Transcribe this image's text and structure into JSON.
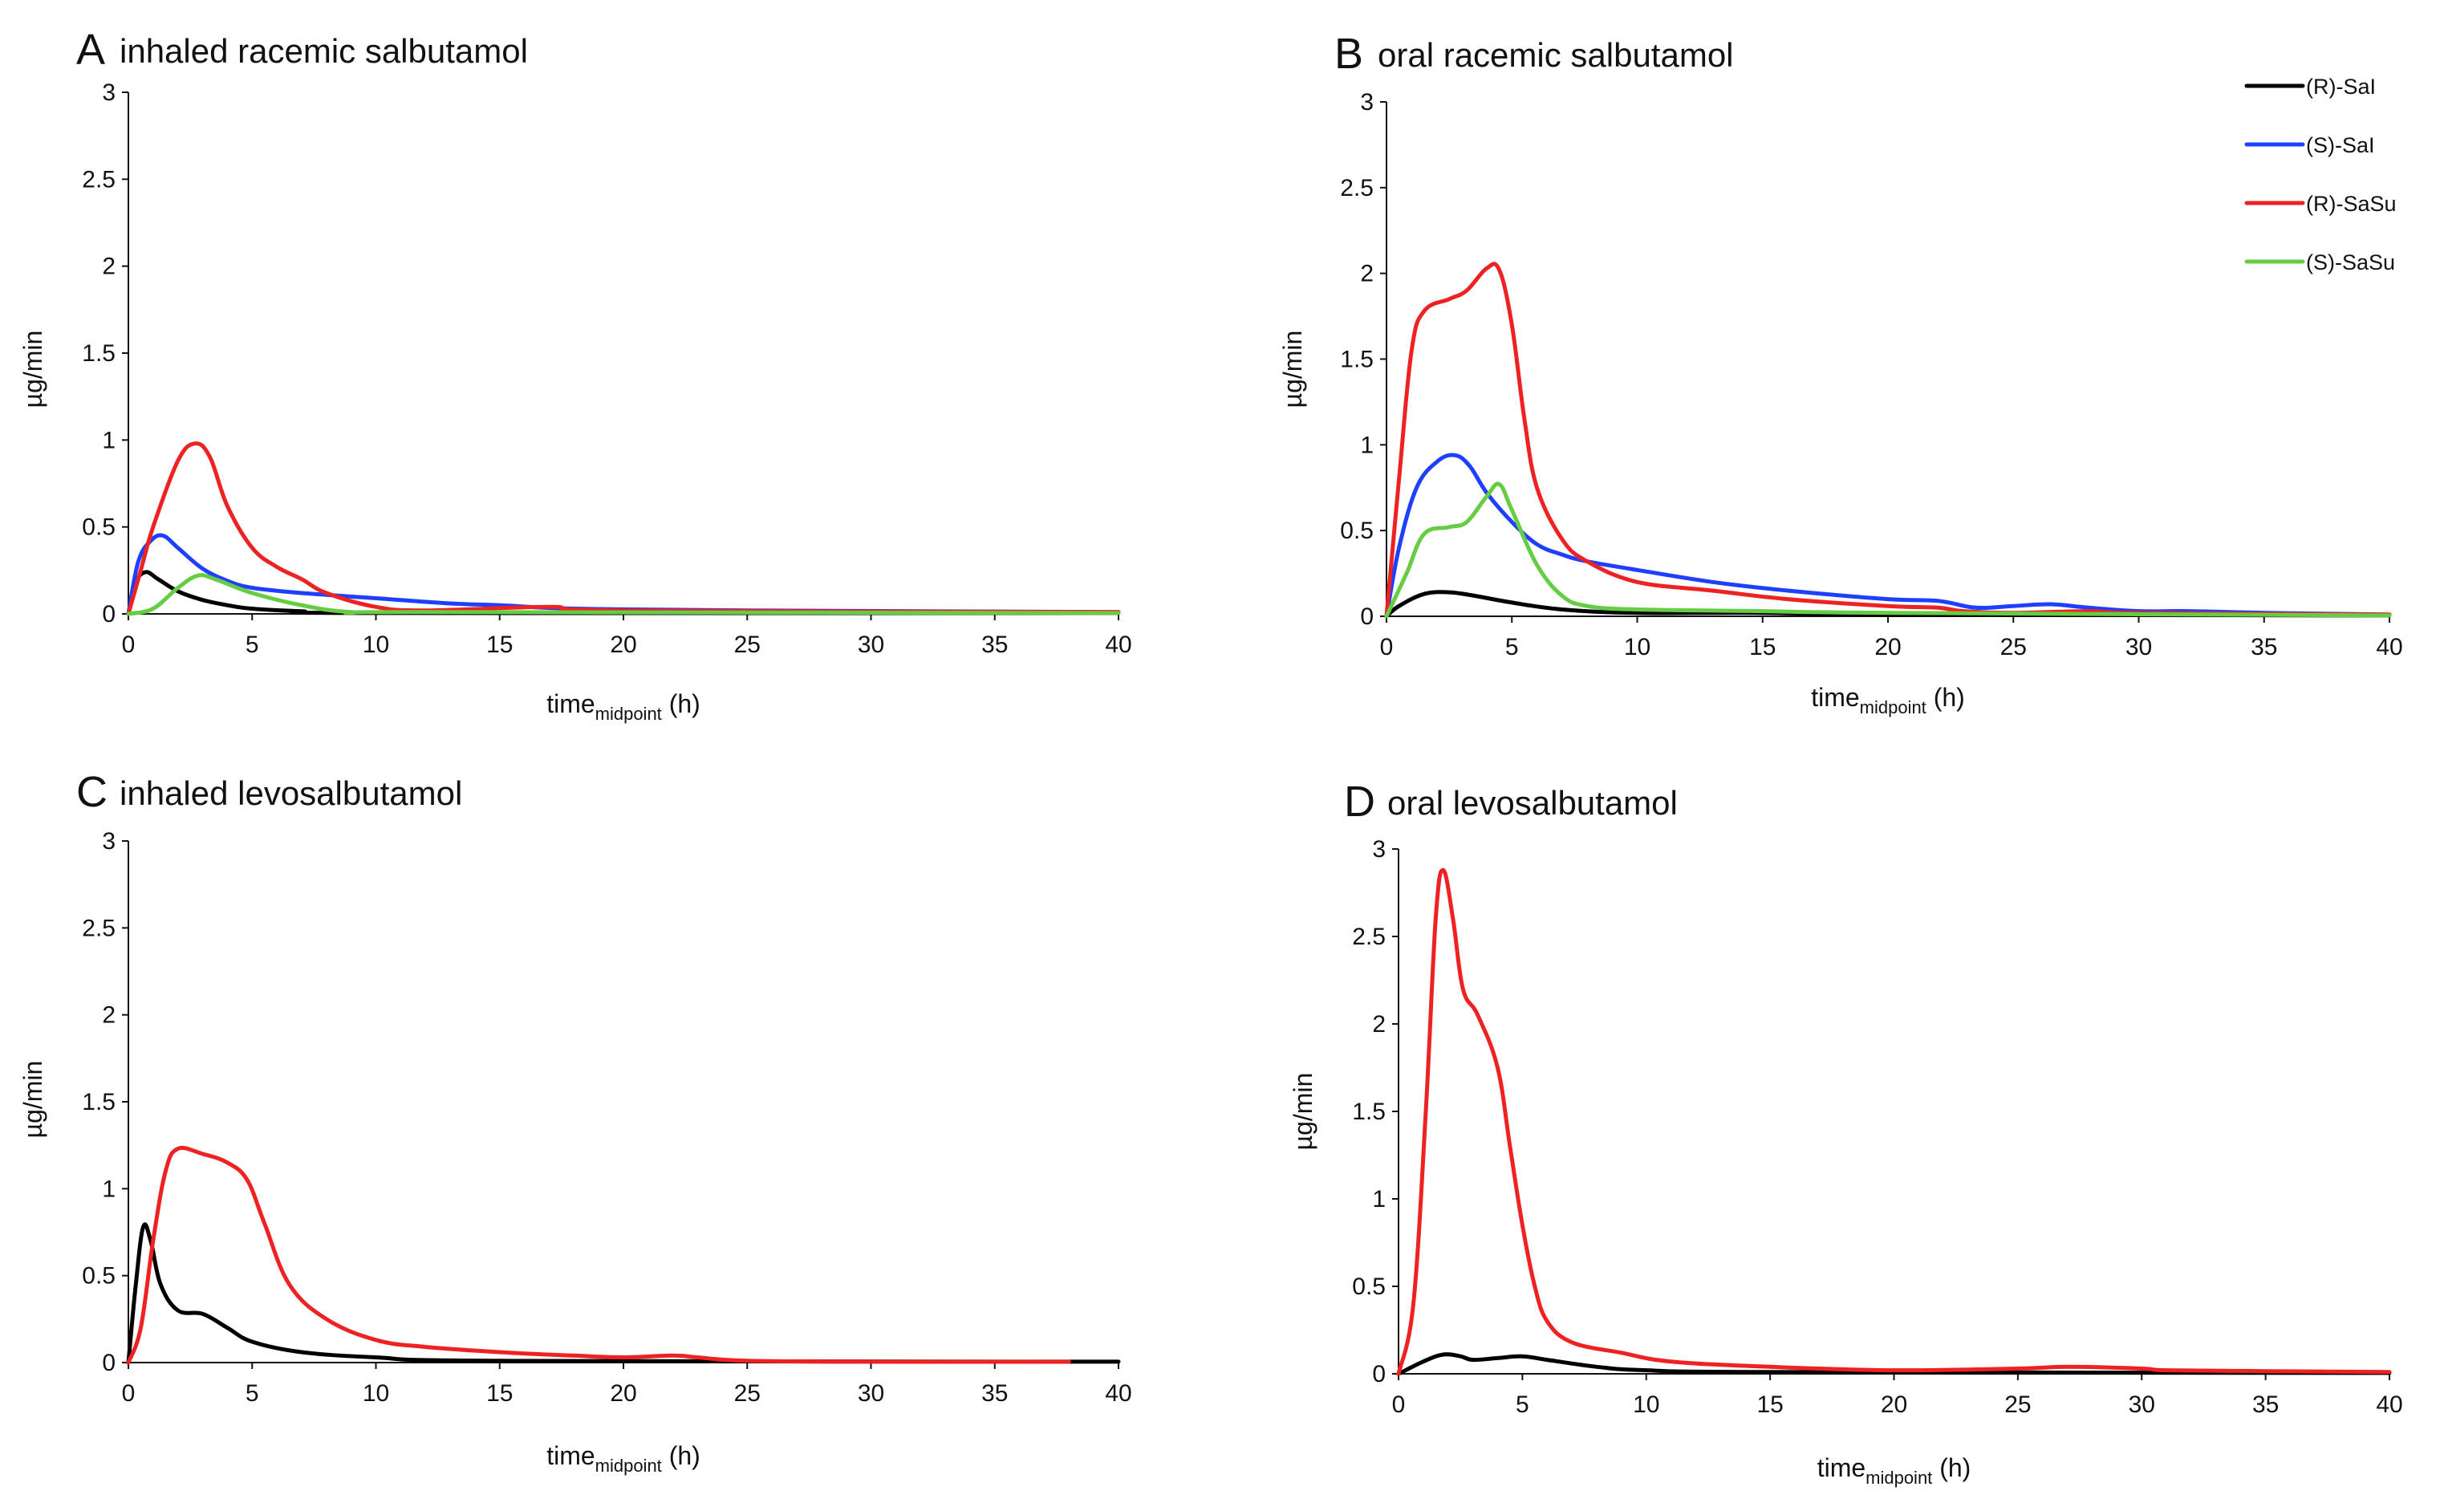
{
  "chart_data": [
    {
      "type": "line",
      "panel_letter": "A",
      "title": "inhaled racemic salbutamol",
      "xlabel": "time",
      "xlabel_sub": "midpoint",
      "xlabel_unit": " (h)",
      "ylabel": "µg/min",
      "xlim": [
        0,
        40
      ],
      "ylim": [
        0,
        3
      ],
      "x_ticks": [
        0,
        5,
        10,
        15,
        20,
        25,
        30,
        35,
        40
      ],
      "y_ticks": [
        0,
        0.5,
        1,
        1.5,
        2,
        2.5,
        3
      ],
      "legend": null,
      "series": [
        {
          "name": "(R)-SaI",
          "color": "#000000",
          "points": [
            [
              0,
              0
            ],
            [
              0.3,
              0.18
            ],
            [
              0.7,
              0.24
            ],
            [
              1.2,
              0.2
            ],
            [
              2,
              0.13
            ],
            [
              3,
              0.08
            ],
            [
              4,
              0.05
            ],
            [
              5,
              0.03
            ],
            [
              7,
              0.015
            ],
            [
              10,
              0.005
            ],
            [
              40,
              0.005
            ]
          ]
        },
        {
          "name": "(S)-SaI",
          "color": "#1f3fff",
          "points": [
            [
              0,
              0
            ],
            [
              0.4,
              0.3
            ],
            [
              0.9,
              0.42
            ],
            [
              1.4,
              0.45
            ],
            [
              2,
              0.38
            ],
            [
              3,
              0.26
            ],
            [
              4,
              0.19
            ],
            [
              5,
              0.15
            ],
            [
              7,
              0.12
            ],
            [
              10,
              0.09
            ],
            [
              13,
              0.06
            ],
            [
              15,
              0.05
            ],
            [
              18,
              0.03
            ],
            [
              25,
              0.02
            ],
            [
              40,
              0.01
            ]
          ]
        },
        {
          "name": "(R)-SaSu",
          "color": "#ee2222",
          "points": [
            [
              0,
              0
            ],
            [
              0.5,
              0.25
            ],
            [
              1,
              0.5
            ],
            [
              2,
              0.88
            ],
            [
              2.7,
              0.98
            ],
            [
              3.3,
              0.9
            ],
            [
              4,
              0.62
            ],
            [
              5,
              0.38
            ],
            [
              6,
              0.27
            ],
            [
              7,
              0.2
            ],
            [
              8,
              0.12
            ],
            [
              10,
              0.04
            ],
            [
              12,
              0.02
            ],
            [
              17,
              0.04
            ],
            [
              20,
              0.02
            ],
            [
              40,
              0.01
            ]
          ]
        },
        {
          "name": "(S)-SaSu",
          "color": "#66cc44",
          "points": [
            [
              0,
              0
            ],
            [
              1,
              0.03
            ],
            [
              2,
              0.15
            ],
            [
              2.8,
              0.22
            ],
            [
              3.5,
              0.2
            ],
            [
              5,
              0.12
            ],
            [
              7,
              0.05
            ],
            [
              9,
              0.01
            ],
            [
              12,
              0.01
            ],
            [
              40,
              0.005
            ]
          ]
        }
      ]
    },
    {
      "type": "line",
      "panel_letter": "B",
      "title": "oral racemic salbutamol",
      "xlabel": "time",
      "xlabel_sub": "midpoint",
      "xlabel_unit": " (h)",
      "ylabel": "µg/min",
      "xlim": [
        0,
        40
      ],
      "ylim": [
        0,
        3
      ],
      "x_ticks": [
        0,
        5,
        10,
        15,
        20,
        25,
        30,
        35,
        40
      ],
      "y_ticks": [
        0,
        0.5,
        1,
        1.5,
        2,
        2.5,
        3
      ],
      "legend": "top-right",
      "series": [
        {
          "name": "(R)-SaI",
          "color": "#000000",
          "points": [
            [
              0,
              0
            ],
            [
              0.5,
              0.06
            ],
            [
              1.5,
              0.13
            ],
            [
              2.5,
              0.14
            ],
            [
              3.5,
              0.12
            ],
            [
              5,
              0.08
            ],
            [
              7,
              0.04
            ],
            [
              10,
              0.02
            ],
            [
              15,
              0.02
            ],
            [
              20,
              0.01
            ],
            [
              40,
              0.005
            ]
          ]
        },
        {
          "name": "(S)-SaI",
          "color": "#1f3fff",
          "points": [
            [
              0,
              0
            ],
            [
              0.5,
              0.4
            ],
            [
              1.2,
              0.75
            ],
            [
              2,
              0.9
            ],
            [
              2.7,
              0.94
            ],
            [
              3.3,
              0.88
            ],
            [
              4,
              0.72
            ],
            [
              5,
              0.55
            ],
            [
              6,
              0.42
            ],
            [
              7,
              0.36
            ],
            [
              8,
              0.32
            ],
            [
              10,
              0.27
            ],
            [
              13,
              0.2
            ],
            [
              16,
              0.15
            ],
            [
              20,
              0.1
            ],
            [
              22,
              0.09
            ],
            [
              23.5,
              0.05
            ],
            [
              25,
              0.06
            ],
            [
              26.5,
              0.07
            ],
            [
              28,
              0.05
            ],
            [
              30,
              0.03
            ],
            [
              32,
              0.03
            ],
            [
              35,
              0.02
            ],
            [
              40,
              0.01
            ]
          ]
        },
        {
          "name": "(R)-SaSu",
          "color": "#ee2222",
          "points": [
            [
              0,
              0
            ],
            [
              0.5,
              0.8
            ],
            [
              1,
              1.55
            ],
            [
              1.5,
              1.78
            ],
            [
              2.5,
              1.85
            ],
            [
              3.2,
              1.9
            ],
            [
              4,
              2.03
            ],
            [
              4.5,
              2.02
            ],
            [
              5,
              1.7
            ],
            [
              5.5,
              1.15
            ],
            [
              6,
              0.75
            ],
            [
              7,
              0.45
            ],
            [
              8,
              0.32
            ],
            [
              10,
              0.2
            ],
            [
              13,
              0.15
            ],
            [
              16,
              0.1
            ],
            [
              20,
              0.06
            ],
            [
              22,
              0.05
            ],
            [
              23,
              0.03
            ],
            [
              25,
              0.02
            ],
            [
              28,
              0.03
            ],
            [
              30,
              0.02
            ],
            [
              40,
              0.01
            ]
          ]
        },
        {
          "name": "(S)-SaSu",
          "color": "#66cc44",
          "points": [
            [
              0,
              0
            ],
            [
              0.8,
              0.25
            ],
            [
              1.5,
              0.48
            ],
            [
              2.5,
              0.52
            ],
            [
              3.2,
              0.55
            ],
            [
              4,
              0.7
            ],
            [
              4.5,
              0.77
            ],
            [
              5,
              0.62
            ],
            [
              6,
              0.3
            ],
            [
              7,
              0.12
            ],
            [
              8,
              0.06
            ],
            [
              10,
              0.04
            ],
            [
              15,
              0.03
            ],
            [
              20,
              0.02
            ],
            [
              40,
              0.005
            ]
          ]
        }
      ]
    },
    {
      "type": "line",
      "panel_letter": "C",
      "title": "inhaled levosalbutamol",
      "xlabel": "time",
      "xlabel_sub": "midpoint",
      "xlabel_unit": " (h)",
      "ylabel": "µg/min",
      "xlim": [
        0,
        40
      ],
      "ylim": [
        0,
        3
      ],
      "x_ticks": [
        0,
        5,
        10,
        15,
        20,
        25,
        30,
        35,
        40
      ],
      "y_ticks": [
        0,
        0.5,
        1,
        1.5,
        2,
        2.5,
        3
      ],
      "legend": null,
      "series": [
        {
          "name": "(R)-SaI",
          "color": "#000000",
          "points": [
            [
              0,
              0
            ],
            [
              0.3,
              0.45
            ],
            [
              0.6,
              0.78
            ],
            [
              0.9,
              0.7
            ],
            [
              1.3,
              0.45
            ],
            [
              2,
              0.3
            ],
            [
              3,
              0.28
            ],
            [
              4,
              0.2
            ],
            [
              5,
              0.12
            ],
            [
              7,
              0.06
            ],
            [
              10,
              0.03
            ],
            [
              15,
              0.01
            ],
            [
              40,
              0.005
            ]
          ]
        },
        {
          "name": "(R)-SaSu",
          "color": "#ee2222",
          "points": [
            [
              0,
              0
            ],
            [
              0.5,
              0.2
            ],
            [
              1,
              0.7
            ],
            [
              1.5,
              1.1
            ],
            [
              2,
              1.23
            ],
            [
              3,
              1.2
            ],
            [
              4,
              1.15
            ],
            [
              4.8,
              1.05
            ],
            [
              5.5,
              0.8
            ],
            [
              6.5,
              0.45
            ],
            [
              8,
              0.25
            ],
            [
              10,
              0.13
            ],
            [
              12,
              0.09
            ],
            [
              15,
              0.06
            ],
            [
              18,
              0.04
            ],
            [
              20,
              0.03
            ],
            [
              22,
              0.04
            ],
            [
              23,
              0.03
            ],
            [
              25,
              0.01
            ],
            [
              30,
              0.005
            ],
            [
              38,
              0.005
            ]
          ]
        }
      ]
    },
    {
      "type": "line",
      "panel_letter": "D",
      "title": "oral levosalbutamol",
      "xlabel": "time",
      "xlabel_sub": "midpoint",
      "xlabel_unit": " (h)",
      "ylabel": "µg/min",
      "xlim": [
        0,
        40
      ],
      "ylim": [
        0,
        3
      ],
      "x_ticks": [
        0,
        5,
        10,
        15,
        20,
        25,
        30,
        35,
        40
      ],
      "y_ticks": [
        0,
        0.5,
        1,
        1.5,
        2,
        2.5,
        3
      ],
      "legend": null,
      "series": [
        {
          "name": "(R)-SaI",
          "color": "#000000",
          "points": [
            [
              0,
              0
            ],
            [
              1,
              0.07
            ],
            [
              1.8,
              0.11
            ],
            [
              2.5,
              0.1
            ],
            [
              3,
              0.08
            ],
            [
              4,
              0.09
            ],
            [
              5,
              0.1
            ],
            [
              6,
              0.08
            ],
            [
              8,
              0.04
            ],
            [
              10,
              0.02
            ],
            [
              15,
              0.01
            ],
            [
              40,
              0.005
            ]
          ]
        },
        {
          "name": "(R)-SaSu",
          "color": "#ee2222",
          "points": [
            [
              0,
              0
            ],
            [
              0.6,
              0.4
            ],
            [
              1.1,
              1.5
            ],
            [
              1.5,
              2.6
            ],
            [
              1.8,
              2.88
            ],
            [
              2.2,
              2.6
            ],
            [
              2.6,
              2.2
            ],
            [
              3.2,
              2.05
            ],
            [
              4,
              1.75
            ],
            [
              4.5,
              1.3
            ],
            [
              5,
              0.85
            ],
            [
              5.5,
              0.5
            ],
            [
              6,
              0.3
            ],
            [
              7,
              0.18
            ],
            [
              9,
              0.12
            ],
            [
              11,
              0.07
            ],
            [
              15,
              0.04
            ],
            [
              20,
              0.02
            ],
            [
              25,
              0.03
            ],
            [
              27,
              0.04
            ],
            [
              30,
              0.03
            ],
            [
              31,
              0.02
            ],
            [
              35,
              0.015
            ],
            [
              40,
              0.01
            ]
          ]
        }
      ]
    }
  ],
  "legend": {
    "items": [
      {
        "name": "(R)-SaI",
        "color": "#000000"
      },
      {
        "name": "(S)-SaI",
        "color": "#1f3fff"
      },
      {
        "name": "(R)-SaSu",
        "color": "#ee2222"
      },
      {
        "name": "(S)-SaSu",
        "color": "#66cc44"
      }
    ]
  }
}
